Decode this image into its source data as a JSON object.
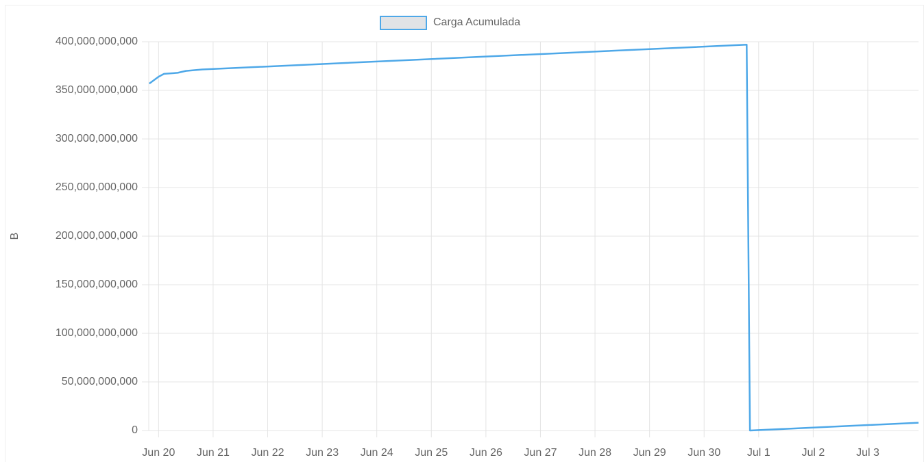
{
  "chart_data": {
    "type": "line",
    "ylabel": "B",
    "legend": "top",
    "grid": true,
    "x": [
      -0.17,
      0.0,
      0.1,
      0.35,
      0.5,
      0.8,
      1.0,
      10.78,
      10.84,
      13.93
    ],
    "series": [
      {
        "name": "Carga Acumulada",
        "color": "#4ea8e8",
        "legend_fill": "#e1e3e6",
        "values": [
          357000000000,
          364000000000,
          367000000000,
          368000000000,
          370000000000,
          371500000000,
          372000000000,
          397000000000,
          0,
          8000000000
        ]
      }
    ],
    "xlim": [
      -0.18,
      13.93
    ],
    "xticks": [
      {
        "value": 0,
        "label": "Jun 20"
      },
      {
        "value": 1,
        "label": "Jun 21"
      },
      {
        "value": 2,
        "label": "Jun 22"
      },
      {
        "value": 3,
        "label": "Jun 23"
      },
      {
        "value": 4,
        "label": "Jun 24"
      },
      {
        "value": 5,
        "label": "Jun 25"
      },
      {
        "value": 6,
        "label": "Jun 26"
      },
      {
        "value": 7,
        "label": "Jun 27"
      },
      {
        "value": 8,
        "label": "Jun 28"
      },
      {
        "value": 9,
        "label": "Jun 29"
      },
      {
        "value": 10,
        "label": "Jun 30"
      },
      {
        "value": 11,
        "label": "Jul 1"
      },
      {
        "value": 12,
        "label": "Jul 2"
      },
      {
        "value": 13,
        "label": "Jul 3"
      }
    ],
    "ylim": [
      0,
      400000000000
    ],
    "yticks": [
      0,
      {
        "value": 50000000000,
        "label": "50,000,000,000"
      },
      {
        "value": 100000000000,
        "label": "100,000,000,000"
      },
      {
        "value": 150000000000,
        "label": "150,000,000,000"
      },
      {
        "value": 200000000000,
        "label": "200,000,000,000"
      },
      {
        "value": 250000000000,
        "label": "250,000,000,000"
      },
      {
        "value": 300000000000,
        "label": "300,000,000,000"
      },
      {
        "value": 350000000000,
        "label": "350,000,000,000"
      },
      {
        "value": 400000000000,
        "label": "400,000,000,000"
      }
    ]
  }
}
